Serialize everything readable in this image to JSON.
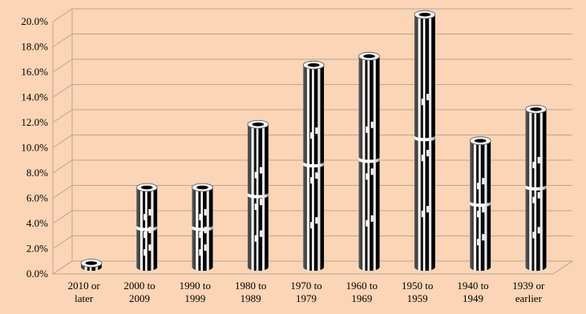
{
  "chart_data": {
    "type": "bar",
    "style": "3d-cylinder",
    "categories": [
      [
        "2010 or",
        "later"
      ],
      [
        "2000 to",
        "2009"
      ],
      [
        "1990 to",
        "1999"
      ],
      [
        "1980 to",
        "1989"
      ],
      [
        "1970 to",
        "1979"
      ],
      [
        "1960 to",
        "1969"
      ],
      [
        "1950 to",
        "1959"
      ],
      [
        "1940 to",
        "1949"
      ],
      [
        "1939 or",
        "earlier"
      ]
    ],
    "values": [
      0.3,
      6.3,
      6.3,
      11.3,
      16.0,
      16.7,
      20.0,
      10.0,
      12.5
    ],
    "ylim": [
      0,
      20
    ],
    "ytick_step": 2,
    "ytick_labels": [
      "0.0%",
      "2.0%",
      "4.0%",
      "6.0%",
      "8.0%",
      "10.0%",
      "12.0%",
      "14.0%",
      "16.0%",
      "18.0%",
      "20.0%"
    ],
    "title": "",
    "xlabel": "",
    "ylabel": "",
    "grid": true,
    "legend": "none",
    "colors": {
      "background": "#fbd5b5",
      "gridline": "#b8a594",
      "bar_dark": "#000000",
      "bar_light": "#ffffff"
    }
  }
}
